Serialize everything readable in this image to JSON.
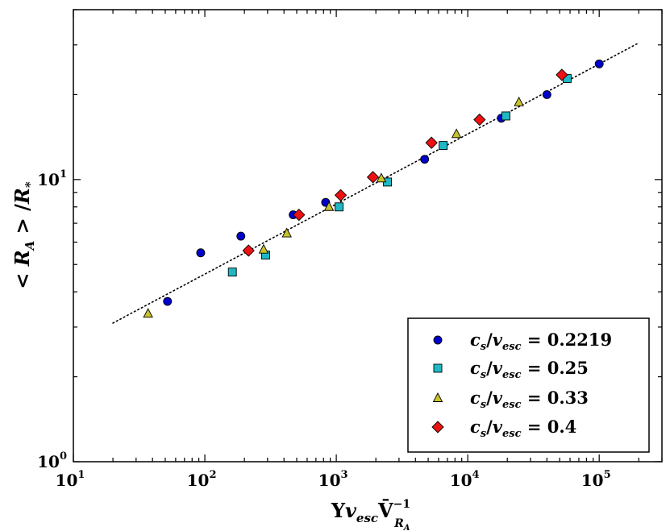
{
  "chart_data": {
    "type": "scatter",
    "xscale": "log",
    "yscale": "log",
    "xlim": [
      10,
      300000
    ],
    "ylim": [
      1,
      40
    ],
    "xticks": [
      {
        "value": 10,
        "base": "10",
        "exp": "1"
      },
      {
        "value": 100,
        "base": "10",
        "exp": "2"
      },
      {
        "value": 1000,
        "base": "10",
        "exp": "3"
      },
      {
        "value": 10000,
        "base": "10",
        "exp": "4"
      },
      {
        "value": 100000,
        "base": "10",
        "exp": "5"
      }
    ],
    "yticks": [
      {
        "value": 1,
        "base": "10",
        "exp": "0"
      },
      {
        "value": 10,
        "base": "10",
        "exp": "1"
      }
    ],
    "xlabel": {
      "upsilon": "Υ",
      "v": "v",
      "v_sub": "esc",
      "V": "V̄",
      "V_sup": "−1",
      "V_sub": "R",
      "V_sub_sub": "A"
    },
    "ylabel": {
      "lt": "<",
      "R": "R",
      "R_sub": "A",
      "gt": ">",
      "slash": "/",
      "Rstar": "R",
      "Rstar_sub": "*"
    },
    "legend_position": "lower-right",
    "fit_line": {
      "style": "dotted",
      "color": "#000000",
      "x": [
        20,
        200000
      ],
      "y": [
        3.1,
        30.5
      ]
    },
    "series": [
      {
        "name": "c_s/v_esc = 0.2219",
        "label": {
          "c": "c",
          "c_sub": "s",
          "v": "v",
          "v_sub": "esc",
          "eq": " = 0.2219"
        },
        "marker": "circle",
        "color": "#0000cc",
        "x": [
          52,
          93,
          188,
          470,
          830,
          4700,
          18000,
          40000,
          100000
        ],
        "y": [
          3.7,
          5.5,
          6.3,
          7.5,
          8.3,
          11.8,
          16.5,
          20.0,
          25.7
        ]
      },
      {
        "name": "c_s/v_esc = 0.25",
        "label": {
          "c": "c",
          "c_sub": "s",
          "v": "v",
          "v_sub": "esc",
          "eq": " = 0.25"
        },
        "marker": "square",
        "color": "#1fb8c4",
        "x": [
          162,
          290,
          1050,
          2450,
          6500,
          19500,
          57000
        ],
        "y": [
          4.7,
          5.4,
          8.0,
          9.8,
          13.2,
          16.8,
          22.8
        ]
      },
      {
        "name": "c_s/v_esc = 0.33",
        "label": {
          "c": "c",
          "c_sub": "s",
          "v": "v",
          "v_sub": "esc",
          "eq": " = 0.33"
        },
        "marker": "triangle",
        "color": "#c9c22a",
        "x": [
          37,
          280,
          420,
          880,
          2200,
          8200,
          24500
        ],
        "y": [
          3.35,
          5.65,
          6.45,
          8.0,
          10.1,
          14.5,
          18.8
        ]
      },
      {
        "name": "c_s/v_esc = 0.4",
        "label": {
          "c": "c",
          "c_sub": "s",
          "v": "v",
          "v_sub": "esc",
          "eq": " = 0.4"
        },
        "marker": "diamond",
        "color": "#ee1111",
        "x": [
          215,
          520,
          1080,
          1900,
          5300,
          12300,
          52000
        ],
        "y": [
          5.6,
          7.5,
          8.8,
          10.2,
          13.5,
          16.3,
          23.5
        ]
      }
    ]
  }
}
